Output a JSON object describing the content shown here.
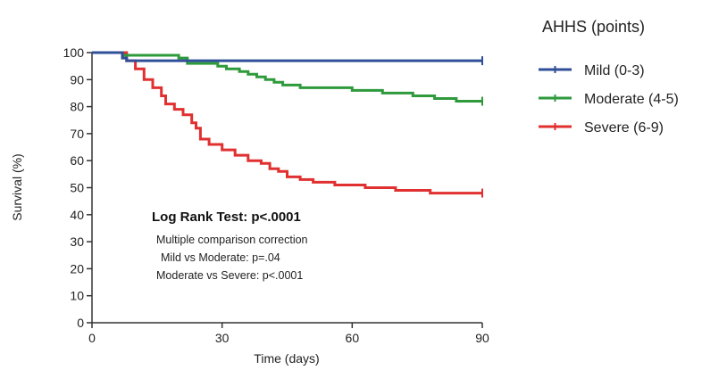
{
  "chart_data": {
    "type": "line",
    "xlabel": "Time (days)",
    "ylabel": "Survival (%)",
    "xlim": [
      0,
      90
    ],
    "ylim": [
      0,
      100
    ],
    "xticks": [
      0,
      30,
      60,
      90
    ],
    "yticks": [
      0,
      10,
      20,
      30,
      40,
      50,
      60,
      70,
      80,
      90,
      100
    ],
    "legend_title": "AHHS (points)",
    "legend_position": "right",
    "grid": false,
    "series": [
      {
        "name": "Mild (0-3)",
        "color": "#2f4f99",
        "points": [
          [
            0,
            100
          ],
          [
            7,
            100
          ],
          [
            7,
            98
          ],
          [
            8,
            98
          ],
          [
            8,
            97
          ],
          [
            90,
            97
          ]
        ]
      },
      {
        "name": "Moderate (4-5)",
        "color": "#2e9a3c",
        "points": [
          [
            0,
            100
          ],
          [
            7,
            100
          ],
          [
            7,
            99
          ],
          [
            20,
            99
          ],
          [
            20,
            98
          ],
          [
            22,
            98
          ],
          [
            22,
            96
          ],
          [
            29,
            96
          ],
          [
            29,
            95
          ],
          [
            31,
            95
          ],
          [
            31,
            94
          ],
          [
            34,
            94
          ],
          [
            34,
            93
          ],
          [
            36,
            93
          ],
          [
            36,
            92
          ],
          [
            38,
            92
          ],
          [
            38,
            91
          ],
          [
            40,
            91
          ],
          [
            40,
            90
          ],
          [
            42,
            90
          ],
          [
            42,
            89
          ],
          [
            44,
            89
          ],
          [
            44,
            88
          ],
          [
            48,
            88
          ],
          [
            48,
            87
          ],
          [
            60,
            87
          ],
          [
            60,
            86
          ],
          [
            67,
            86
          ],
          [
            67,
            85
          ],
          [
            74,
            85
          ],
          [
            74,
            84
          ],
          [
            79,
            84
          ],
          [
            79,
            83
          ],
          [
            84,
            83
          ],
          [
            84,
            82
          ],
          [
            90,
            82
          ]
        ]
      },
      {
        "name": "Severe (6-9)",
        "color": "#e03030",
        "points": [
          [
            0,
            100
          ],
          [
            8,
            100
          ],
          [
            8,
            97
          ],
          [
            10,
            97
          ],
          [
            10,
            94
          ],
          [
            12,
            94
          ],
          [
            12,
            90
          ],
          [
            14,
            90
          ],
          [
            14,
            87
          ],
          [
            16,
            87
          ],
          [
            16,
            84
          ],
          [
            17,
            84
          ],
          [
            17,
            81
          ],
          [
            19,
            81
          ],
          [
            19,
            79
          ],
          [
            21,
            79
          ],
          [
            21,
            77
          ],
          [
            23,
            77
          ],
          [
            23,
            74
          ],
          [
            24,
            74
          ],
          [
            24,
            72
          ],
          [
            25,
            72
          ],
          [
            25,
            68
          ],
          [
            27,
            68
          ],
          [
            27,
            66
          ],
          [
            30,
            66
          ],
          [
            30,
            64
          ],
          [
            33,
            64
          ],
          [
            33,
            62
          ],
          [
            36,
            62
          ],
          [
            36,
            60
          ],
          [
            39,
            60
          ],
          [
            39,
            59
          ],
          [
            41,
            59
          ],
          [
            41,
            57
          ],
          [
            43,
            57
          ],
          [
            43,
            56
          ],
          [
            45,
            56
          ],
          [
            45,
            54
          ],
          [
            48,
            54
          ],
          [
            48,
            53
          ],
          [
            51,
            53
          ],
          [
            51,
            52
          ],
          [
            56,
            52
          ],
          [
            56,
            51
          ],
          [
            63,
            51
          ],
          [
            63,
            50
          ],
          [
            70,
            50
          ],
          [
            70,
            49
          ],
          [
            78,
            49
          ],
          [
            78,
            48
          ],
          [
            90,
            48
          ]
        ]
      }
    ],
    "annotations": [
      "Log Rank Test: p<.0001",
      "Multiple comparison correction",
      "Mild vs Moderate: p=.04",
      "Moderate vs Severe: p<.0001"
    ]
  }
}
